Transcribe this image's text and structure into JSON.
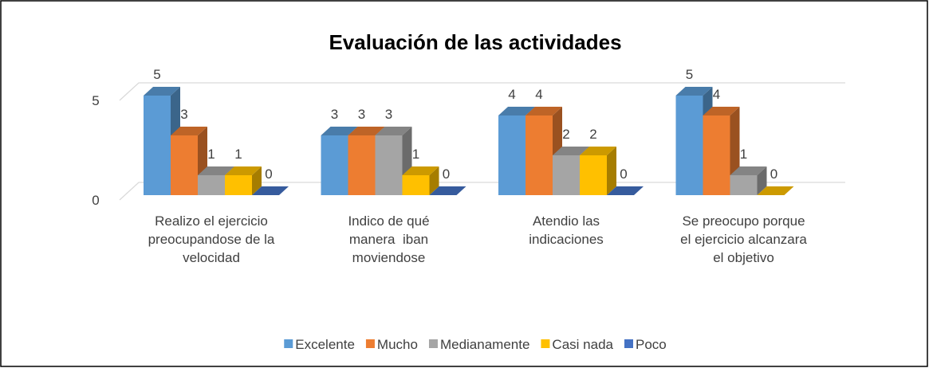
{
  "chart_data": {
    "type": "bar3d",
    "title": "Evaluación de las actividades",
    "categories": [
      "Realizo el ejercicio preocupandose de la velocidad",
      "Indico de qué manera  iban moviendose",
      "Atendio las indicaciones",
      "Se preocupo porque el ejercicio alcanzara el objetivo"
    ],
    "series": [
      {
        "name": "Excelente",
        "color": "#5b9bd5",
        "values": [
          5,
          3,
          4,
          5
        ]
      },
      {
        "name": "Mucho",
        "color": "#ed7d31",
        "values": [
          3,
          3,
          4,
          4
        ]
      },
      {
        "name": "Medianamente",
        "color": "#a5a5a5",
        "values": [
          1,
          3,
          2,
          1
        ]
      },
      {
        "name": "Casi nada",
        "color": "#ffc000",
        "values": [
          1,
          1,
          2,
          0
        ]
      },
      {
        "name": "Poco",
        "color": "#4472c4",
        "values": [
          0,
          0,
          0,
          null
        ]
      }
    ],
    "ylim": [
      0,
      5
    ],
    "yticks": [
      0,
      5
    ],
    "grid": true,
    "legend": "bottom"
  }
}
